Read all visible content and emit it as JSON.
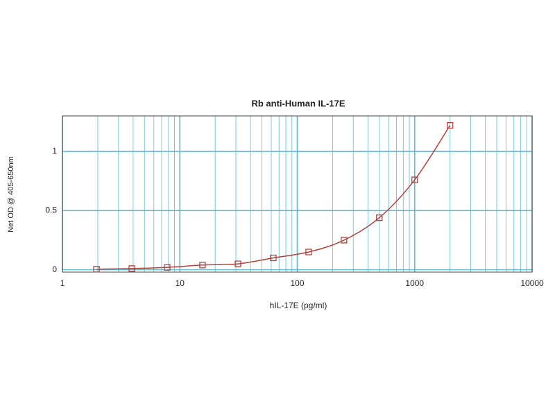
{
  "chart_data": {
    "type": "scatter",
    "title": "Rb anti-Human IL-17E",
    "x_label": "hIL-17E (pg/ml)",
    "y_label": "Net OD @ 405-650nm",
    "x_log_scale": true,
    "grid": true,
    "xlim": [
      1,
      10000
    ],
    "ylim": [
      -0.02,
      1.3
    ],
    "xticks": [
      1,
      10,
      100,
      1000,
      10000
    ],
    "x_minor_gridlines": [
      2,
      3,
      4,
      5,
      6,
      7,
      8,
      9,
      20,
      30,
      40,
      50,
      60,
      70,
      80,
      90,
      200,
      300,
      400,
      500,
      600,
      700,
      800,
      900,
      2000,
      3000,
      4000,
      5000,
      6000,
      7000,
      8000,
      9000
    ],
    "yticks": [
      0,
      0.5,
      1
    ],
    "series": [
      {
        "color": "#b5403a",
        "x": [
          1.95,
          3.9,
          7.8,
          15.6,
          31.25,
          62.5,
          125,
          250,
          500,
          1000,
          2000
        ],
        "values": [
          0.005,
          0.01,
          0.02,
          0.04,
          0.05,
          0.1,
          0.15,
          0.25,
          0.44,
          0.76,
          1.22
        ]
      }
    ]
  }
}
